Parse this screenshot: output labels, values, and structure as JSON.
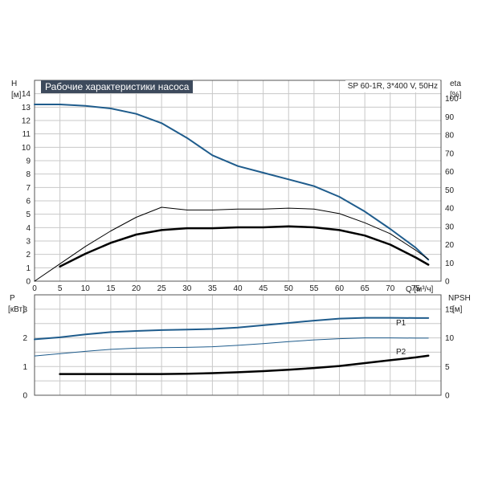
{
  "chart_data": [
    {
      "type": "line",
      "title": "Рабочие характеристики насоса",
      "subtitle": "SP 60-1R, 3*400 V, 50Hz",
      "ylabel_left": "H",
      "ylabel_left_unit": "[м]",
      "ylabel_right": "eta",
      "ylabel_right_unit": "[%]",
      "xlabel": "Q [м³/ч]",
      "xlim": [
        0,
        80
      ],
      "ylim_left": [
        0,
        15
      ],
      "ylim_right": [
        0,
        110
      ],
      "x_ticks": [
        "0",
        "5",
        "10",
        "15",
        "20",
        "25",
        "30",
        "35",
        "40",
        "45",
        "50",
        "55",
        "60",
        "65",
        "70",
        "75"
      ],
      "y_ticks_left": [
        "0",
        "1",
        "2",
        "3",
        "4",
        "5",
        "6",
        "7",
        "8",
        "9",
        "10",
        "11",
        "12",
        "13",
        "14"
      ],
      "y_ticks_right": [
        "0",
        "10",
        "20",
        "30",
        "40",
        "50",
        "60",
        "70",
        "80",
        "90",
        "100"
      ],
      "grid": true,
      "series": [
        {
          "name": "",
          "axis": "left",
          "color": "#1f5c8c",
          "width": 2,
          "x": [
            0,
            5,
            10,
            15,
            20,
            25,
            30,
            35,
            40,
            45,
            50,
            55,
            60,
            65,
            70,
            75,
            77.5
          ],
          "y": [
            13.2,
            13.2,
            13.1,
            12.9,
            12.5,
            11.8,
            10.7,
            9.4,
            8.6,
            8.1,
            7.6,
            7.1,
            6.3,
            5.2,
            3.9,
            2.5,
            1.6
          ]
        },
        {
          "name": "",
          "axis": "right",
          "color": "#000000",
          "width": 1,
          "x": [
            0,
            5,
            10,
            15,
            20,
            25,
            30,
            35,
            40,
            45,
            50,
            55,
            60,
            65,
            70,
            75,
            77.5
          ],
          "y": [
            0,
            9.5,
            19,
            27.5,
            35,
            40.5,
            39,
            39,
            39.5,
            39.5,
            40,
            39.5,
            37,
            32,
            26,
            17,
            12
          ]
        },
        {
          "name": "",
          "axis": "right",
          "color": "#000000",
          "width": 2.5,
          "x": [
            5,
            10,
            15,
            20,
            25,
            30,
            35,
            40,
            45,
            50,
            55,
            60,
            65,
            70,
            75,
            77.5
          ],
          "y": [
            8,
            15,
            21,
            25.5,
            28,
            29,
            29,
            29.5,
            29.5,
            30,
            29.5,
            28,
            25,
            20,
            13,
            9
          ]
        }
      ]
    },
    {
      "type": "line",
      "ylabel_left": "P",
      "ylabel_left_unit": "[кВт]",
      "ylabel_right": "NPSH",
      "ylabel_right_unit": "[м]",
      "xlim": [
        0,
        80
      ],
      "ylim_left": [
        0,
        3.5
      ],
      "ylim_right": [
        0,
        17.5
      ],
      "y_ticks_left": [
        "0",
        "1",
        "2",
        "3"
      ],
      "y_ticks_right": [
        "0",
        "5",
        "10",
        "15"
      ],
      "grid": true,
      "series": [
        {
          "name": "P1",
          "axis": "left",
          "color": "#1f5c8c",
          "width": 2,
          "x": [
            0,
            5,
            10,
            15,
            20,
            25,
            30,
            35,
            40,
            45,
            50,
            55,
            60,
            65,
            70,
            75,
            77.5
          ],
          "y": [
            1.95,
            2.02,
            2.12,
            2.2,
            2.24,
            2.27,
            2.29,
            2.31,
            2.36,
            2.44,
            2.52,
            2.6,
            2.67,
            2.7,
            2.7,
            2.69,
            2.69
          ]
        },
        {
          "name": "P2",
          "axis": "left",
          "color": "#1f5c8c",
          "width": 1,
          "x": [
            0,
            5,
            10,
            15,
            20,
            25,
            30,
            35,
            40,
            45,
            50,
            55,
            60,
            65,
            70,
            75,
            77.5
          ],
          "y": [
            1.37,
            1.45,
            1.53,
            1.6,
            1.64,
            1.66,
            1.67,
            1.69,
            1.74,
            1.8,
            1.87,
            1.93,
            1.97,
            2.0,
            2.0,
            1.99,
            1.99
          ]
        },
        {
          "name": "",
          "axis": "right",
          "color": "#000000",
          "width": 2.5,
          "x": [
            5,
            10,
            15,
            20,
            25,
            30,
            35,
            40,
            45,
            50,
            55,
            60,
            65,
            70,
            75,
            77.5
          ],
          "y": [
            3.7,
            3.7,
            3.7,
            3.7,
            3.7,
            3.75,
            3.85,
            4.0,
            4.2,
            4.45,
            4.75,
            5.1,
            5.6,
            6.1,
            6.6,
            6.9
          ]
        }
      ]
    }
  ]
}
